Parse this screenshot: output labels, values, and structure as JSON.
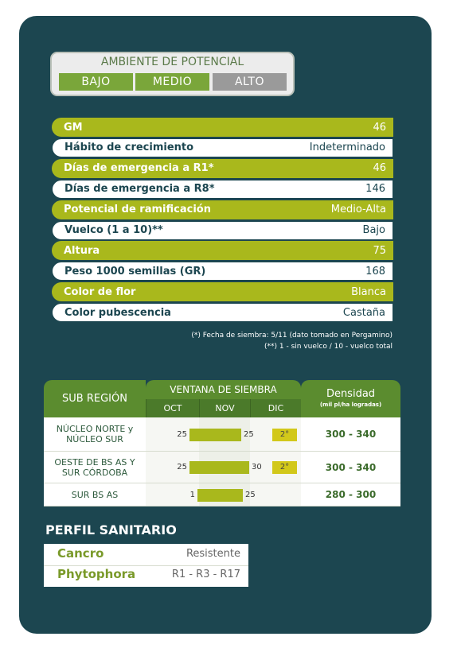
{
  "ambiente": {
    "title": "AMBIENTE DE POTENCIAL",
    "levels": [
      "BAJO",
      "MEDIO",
      "ALTO"
    ]
  },
  "traits": {
    "rows": [
      [
        "GM",
        "46"
      ],
      [
        "Hábito de crecimiento",
        "Indeterminado"
      ],
      [
        "Días de emergencia a R1*",
        "46"
      ],
      [
        "Días de emergencia a R8*",
        "146"
      ],
      [
        "Potencial de ramificación",
        "Medio-Alta"
      ],
      [
        "Vuelco (1 a 10)**",
        "Bajo"
      ],
      [
        "Altura",
        "75"
      ],
      [
        "Peso 1000 semillas (GR)",
        "168"
      ],
      [
        "Color de flor",
        "Blanca"
      ],
      [
        "Color pubescencia",
        "Castaña"
      ]
    ]
  },
  "notes": [
    "(*) Fecha de siembra: 5/11 (dato tomado en Pergamino)",
    "(**) 1 - sin vuelco / 10 - vuelco total"
  ],
  "siembra": {
    "headers": {
      "region": "SUB REGIÓN",
      "ventana": "VENTANA DE SIEMBRA",
      "densidad": "Densidad",
      "densidad_sub": "(mil pl/ha logradas)"
    },
    "months": [
      "OCT",
      "NOV",
      "DIC"
    ],
    "rows": [
      {
        "region": "NÚCLEO NORTE y NÚCLEO SUR",
        "start": "25",
        "end": "25",
        "second": "2°",
        "densidad": "300 - 340"
      },
      {
        "region": "OESTE DE BS AS Y SUR CÓRDOBA",
        "start": "25",
        "end": "30",
        "second": "2°",
        "densidad": "300 - 340"
      },
      {
        "region": "SUR BS AS",
        "start": "1",
        "end": "25",
        "densidad": "280 - 300"
      }
    ]
  },
  "sanidad": {
    "title": "PERFIL SANITARIO",
    "rows": [
      [
        "Cancro",
        "Resistente"
      ],
      [
        "Phytophora",
        "R1 - R3 - R17"
      ]
    ]
  }
}
